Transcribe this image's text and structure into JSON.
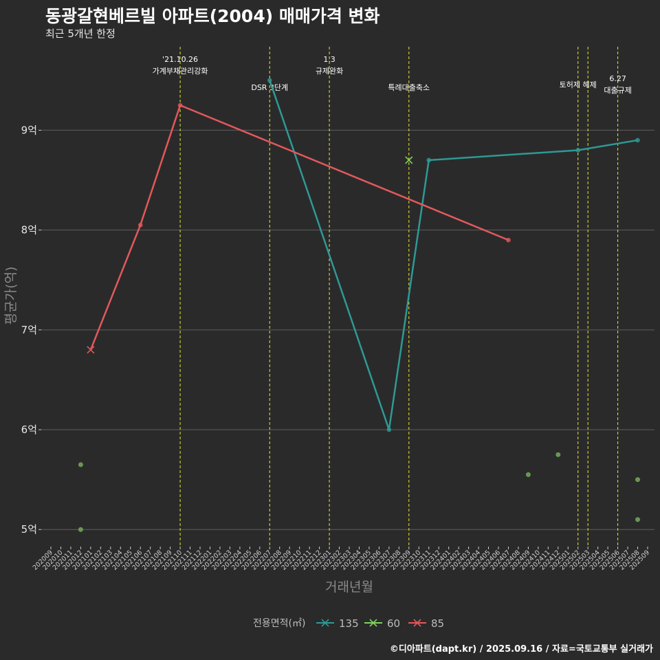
{
  "title": "동광갈현베르빌 아파트(2004) 매매가격 변화",
  "subtitle": "최근 5개년 한정",
  "caption": "©디아파트(dapt.kr) / 2025.09.16 / 자료=국토교통부 실거래가",
  "chart_data": {
    "type": "line",
    "title": "동광갈현베르빌 아파트(2004) 매매가격 변화",
    "subtitle": "최근 5개년 한정",
    "xlabel": "거래년월",
    "ylabel": "평균가(억)",
    "ylim": [
      4.85,
      9.85
    ],
    "yticks": [
      5,
      6,
      7,
      8,
      9
    ],
    "ytick_labels": [
      "5억",
      "6억",
      "7억",
      "8억",
      "9억"
    ],
    "x_categories": [
      "202009",
      "202010",
      "202011",
      "202012",
      "202101",
      "202102",
      "202103",
      "202104",
      "202105",
      "202106",
      "202107",
      "202108",
      "202109",
      "202110",
      "202111",
      "202112",
      "202201",
      "202202",
      "202203",
      "202204",
      "202205",
      "202206",
      "202207",
      "202208",
      "202209",
      "202210",
      "202211",
      "202212",
      "202301",
      "202302",
      "202303",
      "202304",
      "202305",
      "202306",
      "202307",
      "202308",
      "202309",
      "202310",
      "202311",
      "202312",
      "202401",
      "202402",
      "202403",
      "202404",
      "202405",
      "202406",
      "202407",
      "202408",
      "202409",
      "202410",
      "202411",
      "202412",
      "202501",
      "202502",
      "202503",
      "202504",
      "202505",
      "202506",
      "202507",
      "202508",
      "202509"
    ],
    "legend_title": "전용면적(㎡)",
    "series": [
      {
        "name": "135",
        "color": "#2e9a94",
        "points": [
          [
            "202207",
            9.5
          ],
          [
            "202307",
            6.0
          ],
          [
            "202311",
            8.7
          ],
          [
            "202502",
            8.8
          ],
          [
            "202508",
            8.9
          ]
        ]
      },
      {
        "name": "60",
        "color": "#7ed35f",
        "points": [
          [
            "202309",
            8.7
          ]
        ],
        "marker": "x"
      },
      {
        "name": "85",
        "color": "#e2595c",
        "points": [
          [
            "202101",
            6.8
          ],
          [
            "202106",
            8.05
          ],
          [
            "202110",
            9.25
          ],
          [
            "202407",
            7.9
          ]
        ],
        "first_marker": "x"
      }
    ],
    "scatter_points": [
      {
        "x": "202012",
        "y": 5.65,
        "color": "#6fa35a"
      },
      {
        "x": "202012",
        "y": 5.0,
        "color": "#6fa35a"
      },
      {
        "x": "202409",
        "y": 5.55,
        "color": "#6fa35a"
      },
      {
        "x": "202412",
        "y": 5.75,
        "color": "#6fa35a"
      },
      {
        "x": "202508",
        "y": 5.5,
        "color": "#6fa35a"
      },
      {
        "x": "202508",
        "y": 5.1,
        "color": "#6fa35a"
      }
    ],
    "vlines": [
      {
        "x": "202110",
        "lines": [
          "'21.10.26",
          "가계부채관리강화"
        ],
        "level": 0
      },
      {
        "x": "202207",
        "lines": [
          "DSR 3단계"
        ],
        "level": 2
      },
      {
        "x": "202301",
        "lines": [
          "1.3",
          "규제완화"
        ],
        "level": 0
      },
      {
        "x": "202309",
        "lines": [
          "특례대출축소"
        ],
        "level": 2
      },
      {
        "x": "202502",
        "lines": [
          "토허제 해제"
        ],
        "level": 1
      },
      {
        "x": "202503",
        "lines": [],
        "level": 1
      },
      {
        "x": "202506",
        "lines": [
          "6.27",
          "대출규제"
        ],
        "level": 3
      }
    ]
  }
}
